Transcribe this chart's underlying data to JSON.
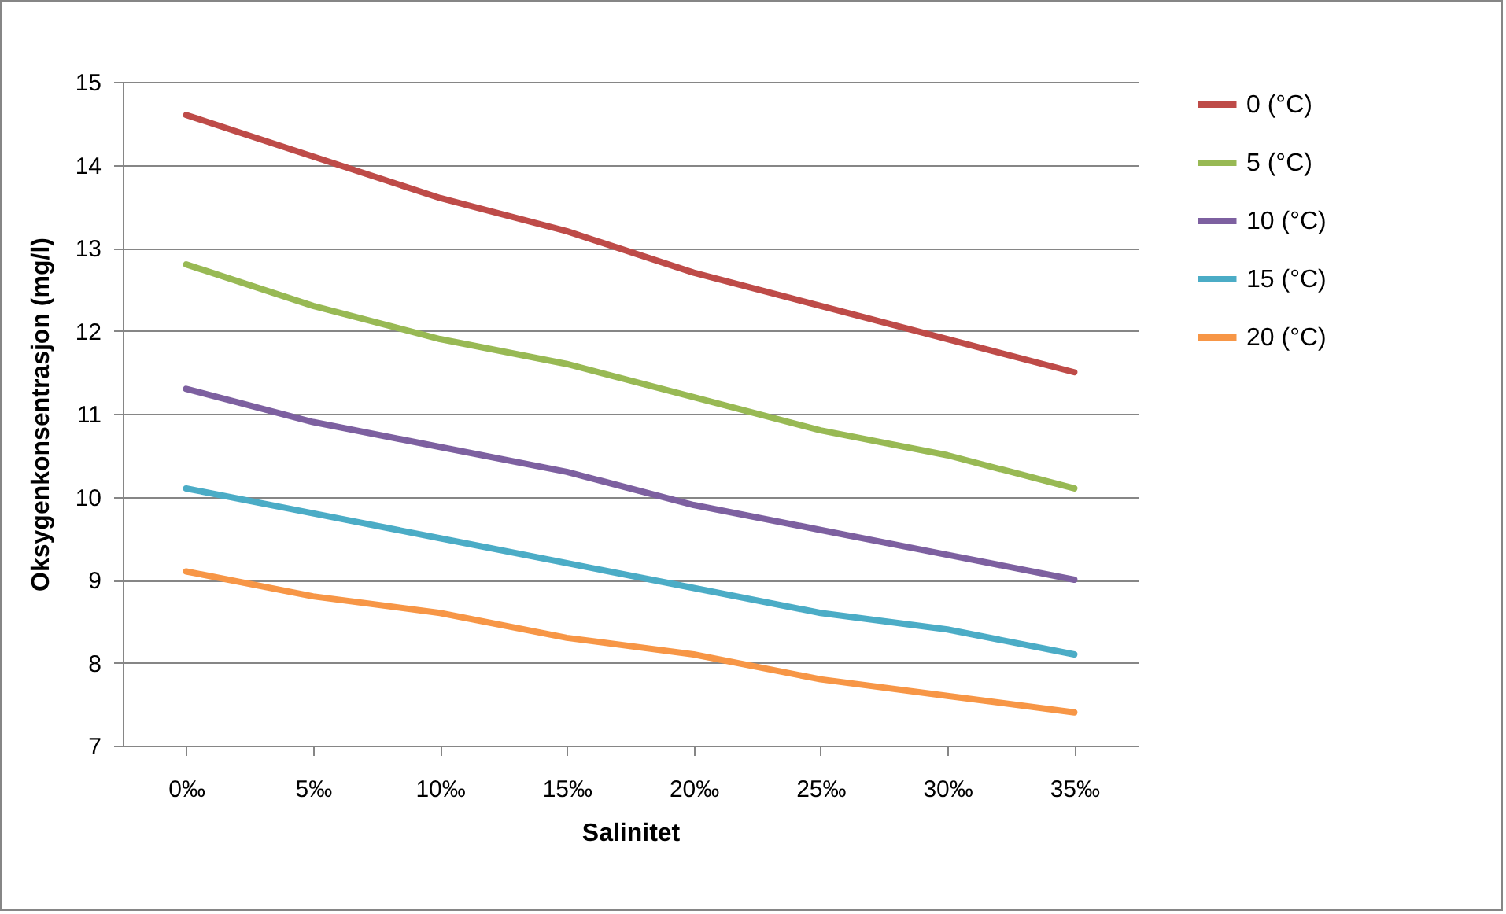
{
  "chart_data": {
    "type": "line",
    "xlabel": "Salinitet",
    "ylabel": "Oksygenkonsentrasjon (mg/l)",
    "categories": [
      "0‰",
      "5‰",
      "10‰",
      "15‰",
      "20‰",
      "25‰",
      "30‰",
      "35‰"
    ],
    "series": [
      {
        "name": "0 (°C)",
        "color": "#be4b48",
        "values": [
          14.6,
          14.1,
          13.6,
          13.2,
          12.7,
          12.3,
          11.9,
          11.5
        ]
      },
      {
        "name": "5 (°C)",
        "color": "#98b954",
        "values": [
          12.8,
          12.3,
          11.9,
          11.6,
          11.2,
          10.8,
          10.5,
          10.1
        ]
      },
      {
        "name": "10 (°C)",
        "color": "#7d60a0",
        "values": [
          11.3,
          10.9,
          10.6,
          10.3,
          9.9,
          9.6,
          9.3,
          9.0
        ]
      },
      {
        "name": "15 (°C)",
        "color": "#4bacc6",
        "values": [
          10.1,
          9.8,
          9.5,
          9.2,
          8.9,
          8.6,
          8.4,
          8.1
        ]
      },
      {
        "name": "20 (°C)",
        "color": "#f79646",
        "values": [
          9.1,
          8.8,
          8.6,
          8.3,
          8.1,
          7.8,
          7.6,
          7.4
        ]
      }
    ],
    "ylim": [
      7,
      15
    ],
    "yticks": [
      7,
      8,
      9,
      10,
      11,
      12,
      13,
      14,
      15
    ],
    "grid": "y",
    "legend": "right",
    "marker": "none",
    "line_style": "solid"
  }
}
